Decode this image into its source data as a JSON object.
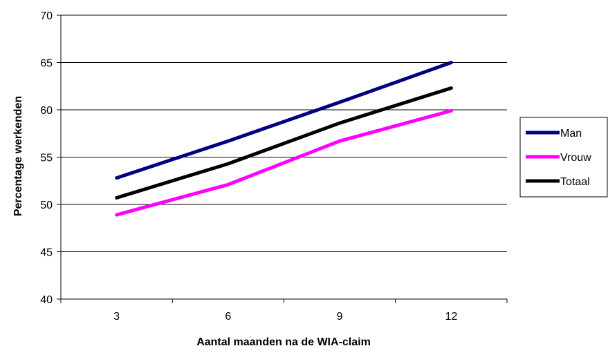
{
  "chart_data": {
    "type": "line",
    "title": "",
    "xlabel": "Aantal maanden na de WIA-claim",
    "ylabel": "Percentage werkenden",
    "categories": [
      "3",
      "6",
      "9",
      "12"
    ],
    "ylim": [
      40,
      70
    ],
    "yticks": [
      "40",
      "45",
      "50",
      "55",
      "60",
      "65",
      "70"
    ],
    "grid": "horizontal",
    "legend_position": "right",
    "series": [
      {
        "name": "Man",
        "color": "#000080",
        "values": [
          52.8,
          56.7,
          60.8,
          65.0
        ]
      },
      {
        "name": "Vrouw",
        "color": "#ff00ff",
        "values": [
          48.9,
          52.1,
          56.7,
          59.9
        ]
      },
      {
        "name": "Totaal",
        "color": "#000000",
        "values": [
          50.7,
          54.3,
          58.6,
          62.3
        ]
      }
    ]
  }
}
